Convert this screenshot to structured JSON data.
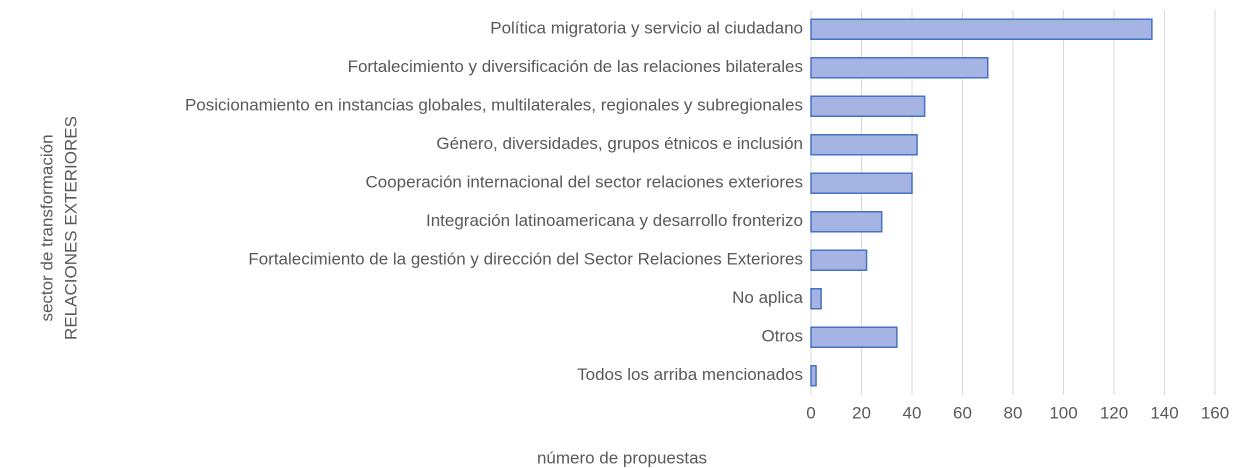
{
  "chart_data": {
    "type": "bar",
    "orientation": "horizontal",
    "categories": [
      "Política migratoria y servicio al ciudadano",
      "Fortalecimiento y diversificación de las relaciones bilaterales",
      "Posicionamiento en instancias globales, multilaterales, regionales y subregionales",
      "Género, diversidades, grupos étnicos e inclusión",
      "Cooperación internacional del sector relaciones exteriores",
      "Integración latinoamericana y desarrollo fronterizo",
      "Fortalecimiento de la gestión y dirección del Sector Relaciones Exteriores",
      "No aplica",
      "Otros",
      "Todos los arriba mencionados"
    ],
    "values": [
      135,
      70,
      45,
      42,
      40,
      28,
      22,
      4,
      34,
      2
    ],
    "color": "#a5b4e2",
    "edge_color": "#4472c4",
    "xlabel": "número de propuestas",
    "ylabel": [
      "sector de transformación",
      "RELACIONES EXTERIORES"
    ],
    "xlim": [
      0,
      160
    ],
    "xticks": [
      0,
      20,
      40,
      60,
      80,
      100,
      120,
      140,
      160
    ],
    "grid": true
  }
}
